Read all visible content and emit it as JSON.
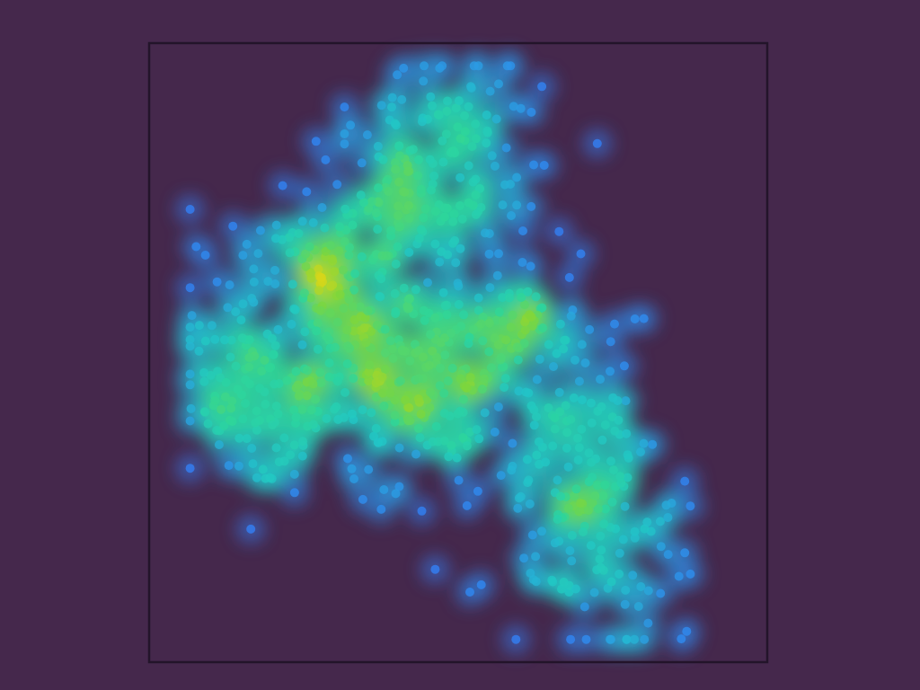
{
  "chart_data": {
    "type": "heatmap",
    "subtype": "density scatter",
    "title": "",
    "xlabel": "",
    "ylabel": "",
    "xlim": [
      0,
      100
    ],
    "ylim": [
      0,
      100
    ],
    "grid": false,
    "legend": "none",
    "colors": {
      "background": "#45284c",
      "frame": "#23142a",
      "colormap": [
        "#3f59ff",
        "#2f8cf0",
        "#22c7c5",
        "#2ed69a",
        "#7ed63c",
        "#d6d61a"
      ]
    },
    "density_peaks": [
      {
        "x": 46,
        "y": 43,
        "density": 1.0
      },
      {
        "x": 65,
        "y": 53,
        "density": 0.78
      },
      {
        "x": 78,
        "y": 32,
        "density": 0.72
      },
      {
        "x": 30,
        "y": 57,
        "density": 0.66
      },
      {
        "x": 34,
        "y": 66,
        "density": 0.62
      },
      {
        "x": 80,
        "y": 12,
        "density": 0.6
      },
      {
        "x": 44,
        "y": 74,
        "density": 0.58
      },
      {
        "x": 53,
        "y": 84,
        "density": 0.52
      },
      {
        "x": 10,
        "y": 48,
        "density": 0.48
      },
      {
        "x": 18,
        "y": 42,
        "density": 0.46
      }
    ],
    "n_points": 900
  }
}
